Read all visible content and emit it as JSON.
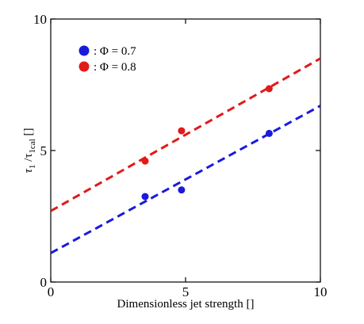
{
  "chart_data": {
    "type": "scatter",
    "title": "",
    "xlabel": "Dimensionless jet strength []",
    "ylabel_main": "τ",
    "ylabel_sub1": "1",
    "ylabel_mid": " /τ",
    "ylabel_sub2": "1cal",
    "ylabel_unit": " []",
    "xlim": [
      0,
      10
    ],
    "ylim": [
      0,
      10
    ],
    "x_ticks": [
      0,
      5,
      10
    ],
    "y_ticks": [
      0,
      5,
      10
    ],
    "x_tick_labels": [
      "0",
      "5",
      "10"
    ],
    "y_tick_labels": [
      "0",
      "5",
      "10"
    ],
    "grid": false,
    "legend_position": "top-left",
    "series": [
      {
        "name": ": Φ = 0.7",
        "color": "#1a1adc",
        "points": [
          {
            "x": 3.5,
            "y": 3.25
          },
          {
            "x": 4.85,
            "y": 3.5
          },
          {
            "x": 8.1,
            "y": 5.65
          }
        ],
        "fit": {
          "x": [
            0,
            10
          ],
          "y": [
            1.1,
            6.7
          ]
        }
      },
      {
        "name": ": Φ = 0.8",
        "color": "#e21a1a",
        "points": [
          {
            "x": 3.5,
            "y": 4.6
          },
          {
            "x": 4.85,
            "y": 5.75
          },
          {
            "x": 8.1,
            "y": 7.35
          }
        ],
        "fit": {
          "x": [
            0,
            10
          ],
          "y": [
            2.7,
            8.5
          ]
        }
      }
    ]
  }
}
